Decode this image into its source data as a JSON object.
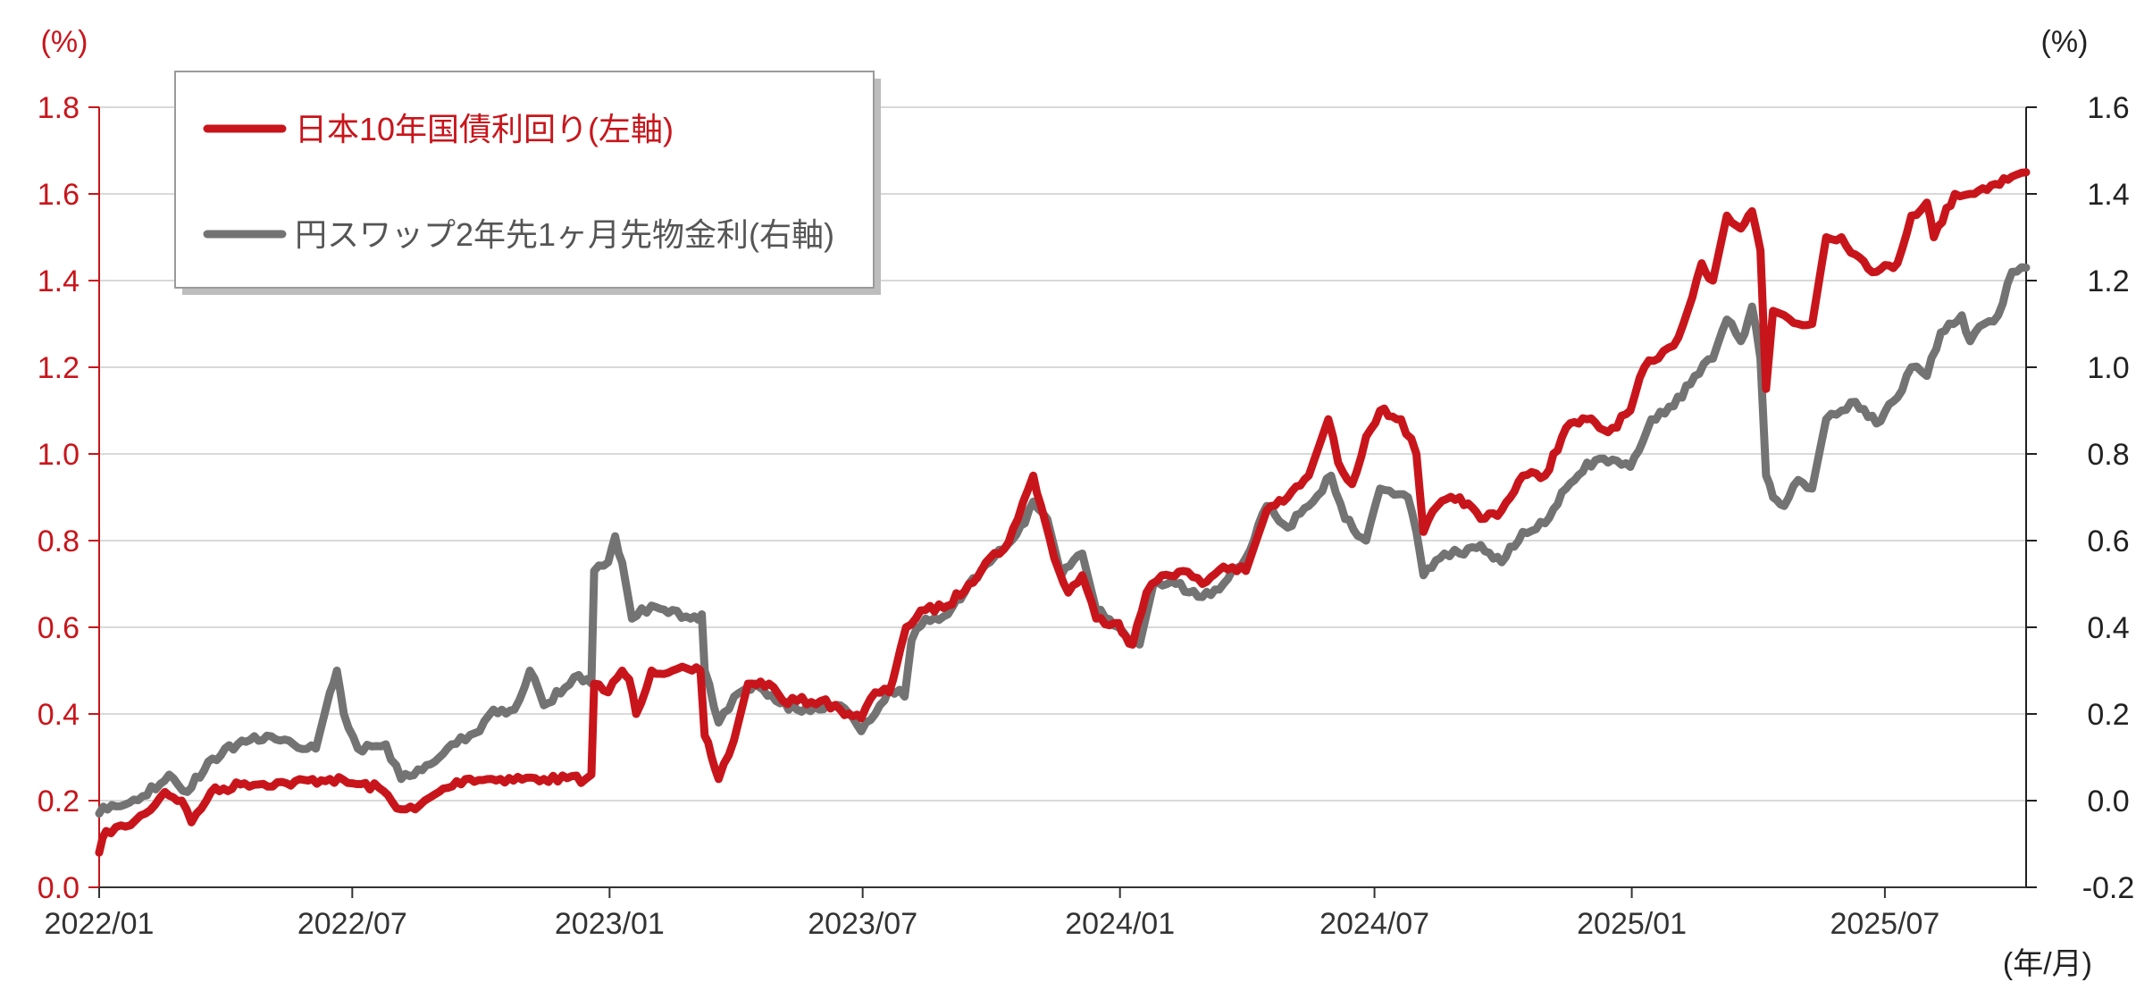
{
  "chart_data": {
    "type": "line",
    "title": "",
    "xlabel": "",
    "x_unit_label": "(年/月)",
    "x_ticks": [
      "2022/01",
      "2022/07",
      "2023/01",
      "2023/07",
      "2024/01",
      "2024/07",
      "2025/01",
      "2025/07"
    ],
    "x_range": [
      "2022-01-01",
      "2025-10-10"
    ],
    "y_left": {
      "unit_label": "(%)",
      "range": [
        0.0,
        1.8
      ],
      "ticks": [
        "0.0",
        "0.2",
        "0.4",
        "0.6",
        "0.8",
        "1.0",
        "1.2",
        "1.4",
        "1.6",
        "1.8"
      ],
      "color": "#c8151b"
    },
    "y_right": {
      "unit_label": "(%)",
      "range": [
        -0.2,
        1.6
      ],
      "ticks": [
        "-0.2",
        "0.0",
        "0.2",
        "0.4",
        "0.6",
        "0.8",
        "1.0",
        "1.2",
        "1.4",
        "1.6"
      ],
      "color": "#222222"
    },
    "grid": true,
    "legend_position": "top-left",
    "series": [
      {
        "name": "日本10年国債利回り(左軸)",
        "axis": "left",
        "color": "#c8151b",
        "points": [
          [
            "2022-01-01",
            0.08
          ],
          [
            "2022-01-06",
            0.13
          ],
          [
            "2022-01-20",
            0.14
          ],
          [
            "2022-02-03",
            0.17
          ],
          [
            "2022-02-17",
            0.22
          ],
          [
            "2022-03-01",
            0.2
          ],
          [
            "2022-03-08",
            0.15
          ],
          [
            "2022-03-22",
            0.22
          ],
          [
            "2022-04-15",
            0.24
          ],
          [
            "2022-05-15",
            0.24
          ],
          [
            "2022-06-15",
            0.25
          ],
          [
            "2022-07-01",
            0.24
          ],
          [
            "2022-07-20",
            0.23
          ],
          [
            "2022-08-05",
            0.18
          ],
          [
            "2022-08-15",
            0.18
          ],
          [
            "2022-09-01",
            0.22
          ],
          [
            "2022-09-20",
            0.25
          ],
          [
            "2022-10-15",
            0.25
          ],
          [
            "2022-11-15",
            0.25
          ],
          [
            "2022-12-15",
            0.25
          ],
          [
            "2022-12-19",
            0.26
          ],
          [
            "2022-12-21",
            0.47
          ],
          [
            "2022-12-31",
            0.45
          ],
          [
            "2023-01-10",
            0.5
          ],
          [
            "2023-01-15",
            0.48
          ],
          [
            "2023-01-20",
            0.4
          ],
          [
            "2023-01-31",
            0.5
          ],
          [
            "2023-02-15",
            0.5
          ],
          [
            "2023-03-01",
            0.5
          ],
          [
            "2023-03-07",
            0.5
          ],
          [
            "2023-03-10",
            0.35
          ],
          [
            "2023-03-15",
            0.3
          ],
          [
            "2023-03-20",
            0.25
          ],
          [
            "2023-03-31",
            0.34
          ],
          [
            "2023-04-10",
            0.47
          ],
          [
            "2023-04-25",
            0.47
          ],
          [
            "2023-05-05",
            0.43
          ],
          [
            "2023-06-01",
            0.43
          ],
          [
            "2023-06-15",
            0.41
          ],
          [
            "2023-06-30",
            0.39
          ],
          [
            "2023-07-10",
            0.45
          ],
          [
            "2023-07-20",
            0.45
          ],
          [
            "2023-07-28",
            0.55
          ],
          [
            "2023-08-01",
            0.6
          ],
          [
            "2023-08-15",
            0.64
          ],
          [
            "2023-08-31",
            0.65
          ],
          [
            "2023-09-15",
            0.7
          ],
          [
            "2023-09-30",
            0.76
          ],
          [
            "2023-10-10",
            0.78
          ],
          [
            "2023-10-20",
            0.85
          ],
          [
            "2023-10-31",
            0.95
          ],
          [
            "2023-11-08",
            0.85
          ],
          [
            "2023-11-15",
            0.76
          ],
          [
            "2023-11-25",
            0.68
          ],
          [
            "2023-12-05",
            0.72
          ],
          [
            "2023-12-15",
            0.62
          ],
          [
            "2023-12-31",
            0.61
          ],
          [
            "2024-01-05",
            0.58
          ],
          [
            "2024-01-10",
            0.56
          ],
          [
            "2024-01-20",
            0.68
          ],
          [
            "2024-01-31",
            0.72
          ],
          [
            "2024-02-15",
            0.73
          ],
          [
            "2024-02-29",
            0.7
          ],
          [
            "2024-03-15",
            0.74
          ],
          [
            "2024-03-31",
            0.73
          ],
          [
            "2024-04-15",
            0.87
          ],
          [
            "2024-04-30",
            0.9
          ],
          [
            "2024-05-15",
            0.95
          ],
          [
            "2024-05-29",
            1.08
          ],
          [
            "2024-06-05",
            0.98
          ],
          [
            "2024-06-15",
            0.93
          ],
          [
            "2024-06-25",
            1.04
          ],
          [
            "2024-07-05",
            1.1
          ],
          [
            "2024-07-20",
            1.08
          ],
          [
            "2024-07-31",
            1.0
          ],
          [
            "2024-08-05",
            0.82
          ],
          [
            "2024-08-15",
            0.88
          ],
          [
            "2024-08-31",
            0.9
          ],
          [
            "2024-09-15",
            0.85
          ],
          [
            "2024-09-30",
            0.87
          ],
          [
            "2024-10-15",
            0.95
          ],
          [
            "2024-10-31",
            0.95
          ],
          [
            "2024-11-15",
            1.06
          ],
          [
            "2024-11-30",
            1.08
          ],
          [
            "2024-12-15",
            1.05
          ],
          [
            "2024-12-31",
            1.1
          ],
          [
            "2025-01-10",
            1.2
          ],
          [
            "2025-01-20",
            1.22
          ],
          [
            "2025-01-31",
            1.25
          ],
          [
            "2025-02-10",
            1.33
          ],
          [
            "2025-02-20",
            1.44
          ],
          [
            "2025-02-28",
            1.4
          ],
          [
            "2025-03-10",
            1.55
          ],
          [
            "2025-03-20",
            1.52
          ],
          [
            "2025-03-28",
            1.56
          ],
          [
            "2025-04-03",
            1.47
          ],
          [
            "2025-04-07",
            1.15
          ],
          [
            "2025-04-12",
            1.33
          ],
          [
            "2025-04-20",
            1.32
          ],
          [
            "2025-04-30",
            1.3
          ],
          [
            "2025-05-10",
            1.3
          ],
          [
            "2025-05-20",
            1.5
          ],
          [
            "2025-05-31",
            1.5
          ],
          [
            "2025-06-10",
            1.46
          ],
          [
            "2025-06-25",
            1.42
          ],
          [
            "2025-07-10",
            1.44
          ],
          [
            "2025-07-20",
            1.55
          ],
          [
            "2025-07-31",
            1.58
          ],
          [
            "2025-08-05",
            1.5
          ],
          [
            "2025-08-20",
            1.6
          ],
          [
            "2025-08-31",
            1.6
          ],
          [
            "2025-09-15",
            1.62
          ],
          [
            "2025-09-30",
            1.64
          ],
          [
            "2025-10-10",
            1.65
          ]
        ]
      },
      {
        "name": "円スワップ2年先1ヶ月先物金利(右軸)",
        "axis": "right",
        "color": "#737373",
        "points": [
          [
            "2022-01-01",
            -0.03
          ],
          [
            "2022-01-10",
            -0.01
          ],
          [
            "2022-02-01",
            0.01
          ],
          [
            "2022-02-20",
            0.06
          ],
          [
            "2022-03-05",
            0.02
          ],
          [
            "2022-03-20",
            0.09
          ],
          [
            "2022-04-10",
            0.13
          ],
          [
            "2022-05-01",
            0.15
          ],
          [
            "2022-05-20",
            0.13
          ],
          [
            "2022-06-05",
            0.12
          ],
          [
            "2022-06-15",
            0.25
          ],
          [
            "2022-06-20",
            0.3
          ],
          [
            "2022-06-25",
            0.2
          ],
          [
            "2022-07-05",
            0.12
          ],
          [
            "2022-07-25",
            0.13
          ],
          [
            "2022-08-05",
            0.05
          ],
          [
            "2022-08-20",
            0.07
          ],
          [
            "2022-09-10",
            0.13
          ],
          [
            "2022-09-30",
            0.16
          ],
          [
            "2022-10-10",
            0.21
          ],
          [
            "2022-10-25",
            0.21
          ],
          [
            "2022-11-05",
            0.3
          ],
          [
            "2022-11-15",
            0.22
          ],
          [
            "2022-11-30",
            0.26
          ],
          [
            "2022-12-10",
            0.29
          ],
          [
            "2022-12-19",
            0.27
          ],
          [
            "2022-12-21",
            0.53
          ],
          [
            "2022-12-31",
            0.55
          ],
          [
            "2023-01-05",
            0.61
          ],
          [
            "2023-01-10",
            0.55
          ],
          [
            "2023-01-17",
            0.42
          ],
          [
            "2023-01-31",
            0.45
          ],
          [
            "2023-02-15",
            0.44
          ],
          [
            "2023-02-28",
            0.42
          ],
          [
            "2023-03-08",
            0.43
          ],
          [
            "2023-03-10",
            0.3
          ],
          [
            "2023-03-20",
            0.18
          ],
          [
            "2023-03-31",
            0.24
          ],
          [
            "2023-04-15",
            0.27
          ],
          [
            "2023-04-30",
            0.23
          ],
          [
            "2023-05-15",
            0.21
          ],
          [
            "2023-05-31",
            0.21
          ],
          [
            "2023-06-15",
            0.22
          ],
          [
            "2023-06-30",
            0.16
          ],
          [
            "2023-07-10",
            0.2
          ],
          [
            "2023-07-20",
            0.26
          ],
          [
            "2023-07-31",
            0.24
          ],
          [
            "2023-08-05",
            0.37
          ],
          [
            "2023-08-15",
            0.42
          ],
          [
            "2023-08-31",
            0.43
          ],
          [
            "2023-09-15",
            0.5
          ],
          [
            "2023-09-30",
            0.55
          ],
          [
            "2023-10-10",
            0.58
          ],
          [
            "2023-10-25",
            0.64
          ],
          [
            "2023-10-31",
            0.69
          ],
          [
            "2023-11-10",
            0.65
          ],
          [
            "2023-11-20",
            0.52
          ],
          [
            "2023-12-05",
            0.57
          ],
          [
            "2023-12-15",
            0.44
          ],
          [
            "2023-12-31",
            0.4
          ],
          [
            "2024-01-10",
            0.37
          ],
          [
            "2024-01-15",
            0.36
          ],
          [
            "2024-01-25",
            0.5
          ],
          [
            "2024-02-10",
            0.5
          ],
          [
            "2024-02-29",
            0.47
          ],
          [
            "2024-03-15",
            0.5
          ],
          [
            "2024-03-31",
            0.56
          ],
          [
            "2024-04-15",
            0.68
          ],
          [
            "2024-04-30",
            0.63
          ],
          [
            "2024-05-15",
            0.68
          ],
          [
            "2024-05-31",
            0.75
          ],
          [
            "2024-06-10",
            0.65
          ],
          [
            "2024-06-25",
            0.6
          ],
          [
            "2024-07-05",
            0.72
          ],
          [
            "2024-07-25",
            0.7
          ],
          [
            "2024-07-31",
            0.62
          ],
          [
            "2024-08-05",
            0.52
          ],
          [
            "2024-08-20",
            0.57
          ],
          [
            "2024-08-31",
            0.57
          ],
          [
            "2024-09-15",
            0.59
          ],
          [
            "2024-09-30",
            0.55
          ],
          [
            "2024-10-15",
            0.62
          ],
          [
            "2024-10-31",
            0.64
          ],
          [
            "2024-11-15",
            0.72
          ],
          [
            "2024-11-30",
            0.78
          ],
          [
            "2024-12-15",
            0.78
          ],
          [
            "2024-12-31",
            0.77
          ],
          [
            "2025-01-15",
            0.88
          ],
          [
            "2025-01-31",
            0.91
          ],
          [
            "2025-02-15",
            0.98
          ],
          [
            "2025-02-28",
            1.02
          ],
          [
            "2025-03-10",
            1.11
          ],
          [
            "2025-03-20",
            1.06
          ],
          [
            "2025-03-28",
            1.14
          ],
          [
            "2025-04-03",
            1.02
          ],
          [
            "2025-04-07",
            0.75
          ],
          [
            "2025-04-12",
            0.7
          ],
          [
            "2025-04-20",
            0.68
          ],
          [
            "2025-04-30",
            0.74
          ],
          [
            "2025-05-10",
            0.72
          ],
          [
            "2025-05-20",
            0.88
          ],
          [
            "2025-05-31",
            0.9
          ],
          [
            "2025-06-10",
            0.92
          ],
          [
            "2025-06-25",
            0.87
          ],
          [
            "2025-07-10",
            0.93
          ],
          [
            "2025-07-20",
            1.0
          ],
          [
            "2025-07-31",
            0.98
          ],
          [
            "2025-08-10",
            1.08
          ],
          [
            "2025-08-25",
            1.12
          ],
          [
            "2025-08-31",
            1.06
          ],
          [
            "2025-09-10",
            1.1
          ],
          [
            "2025-09-20",
            1.12
          ],
          [
            "2025-09-30",
            1.22
          ],
          [
            "2025-10-10",
            1.23
          ]
        ]
      }
    ]
  }
}
